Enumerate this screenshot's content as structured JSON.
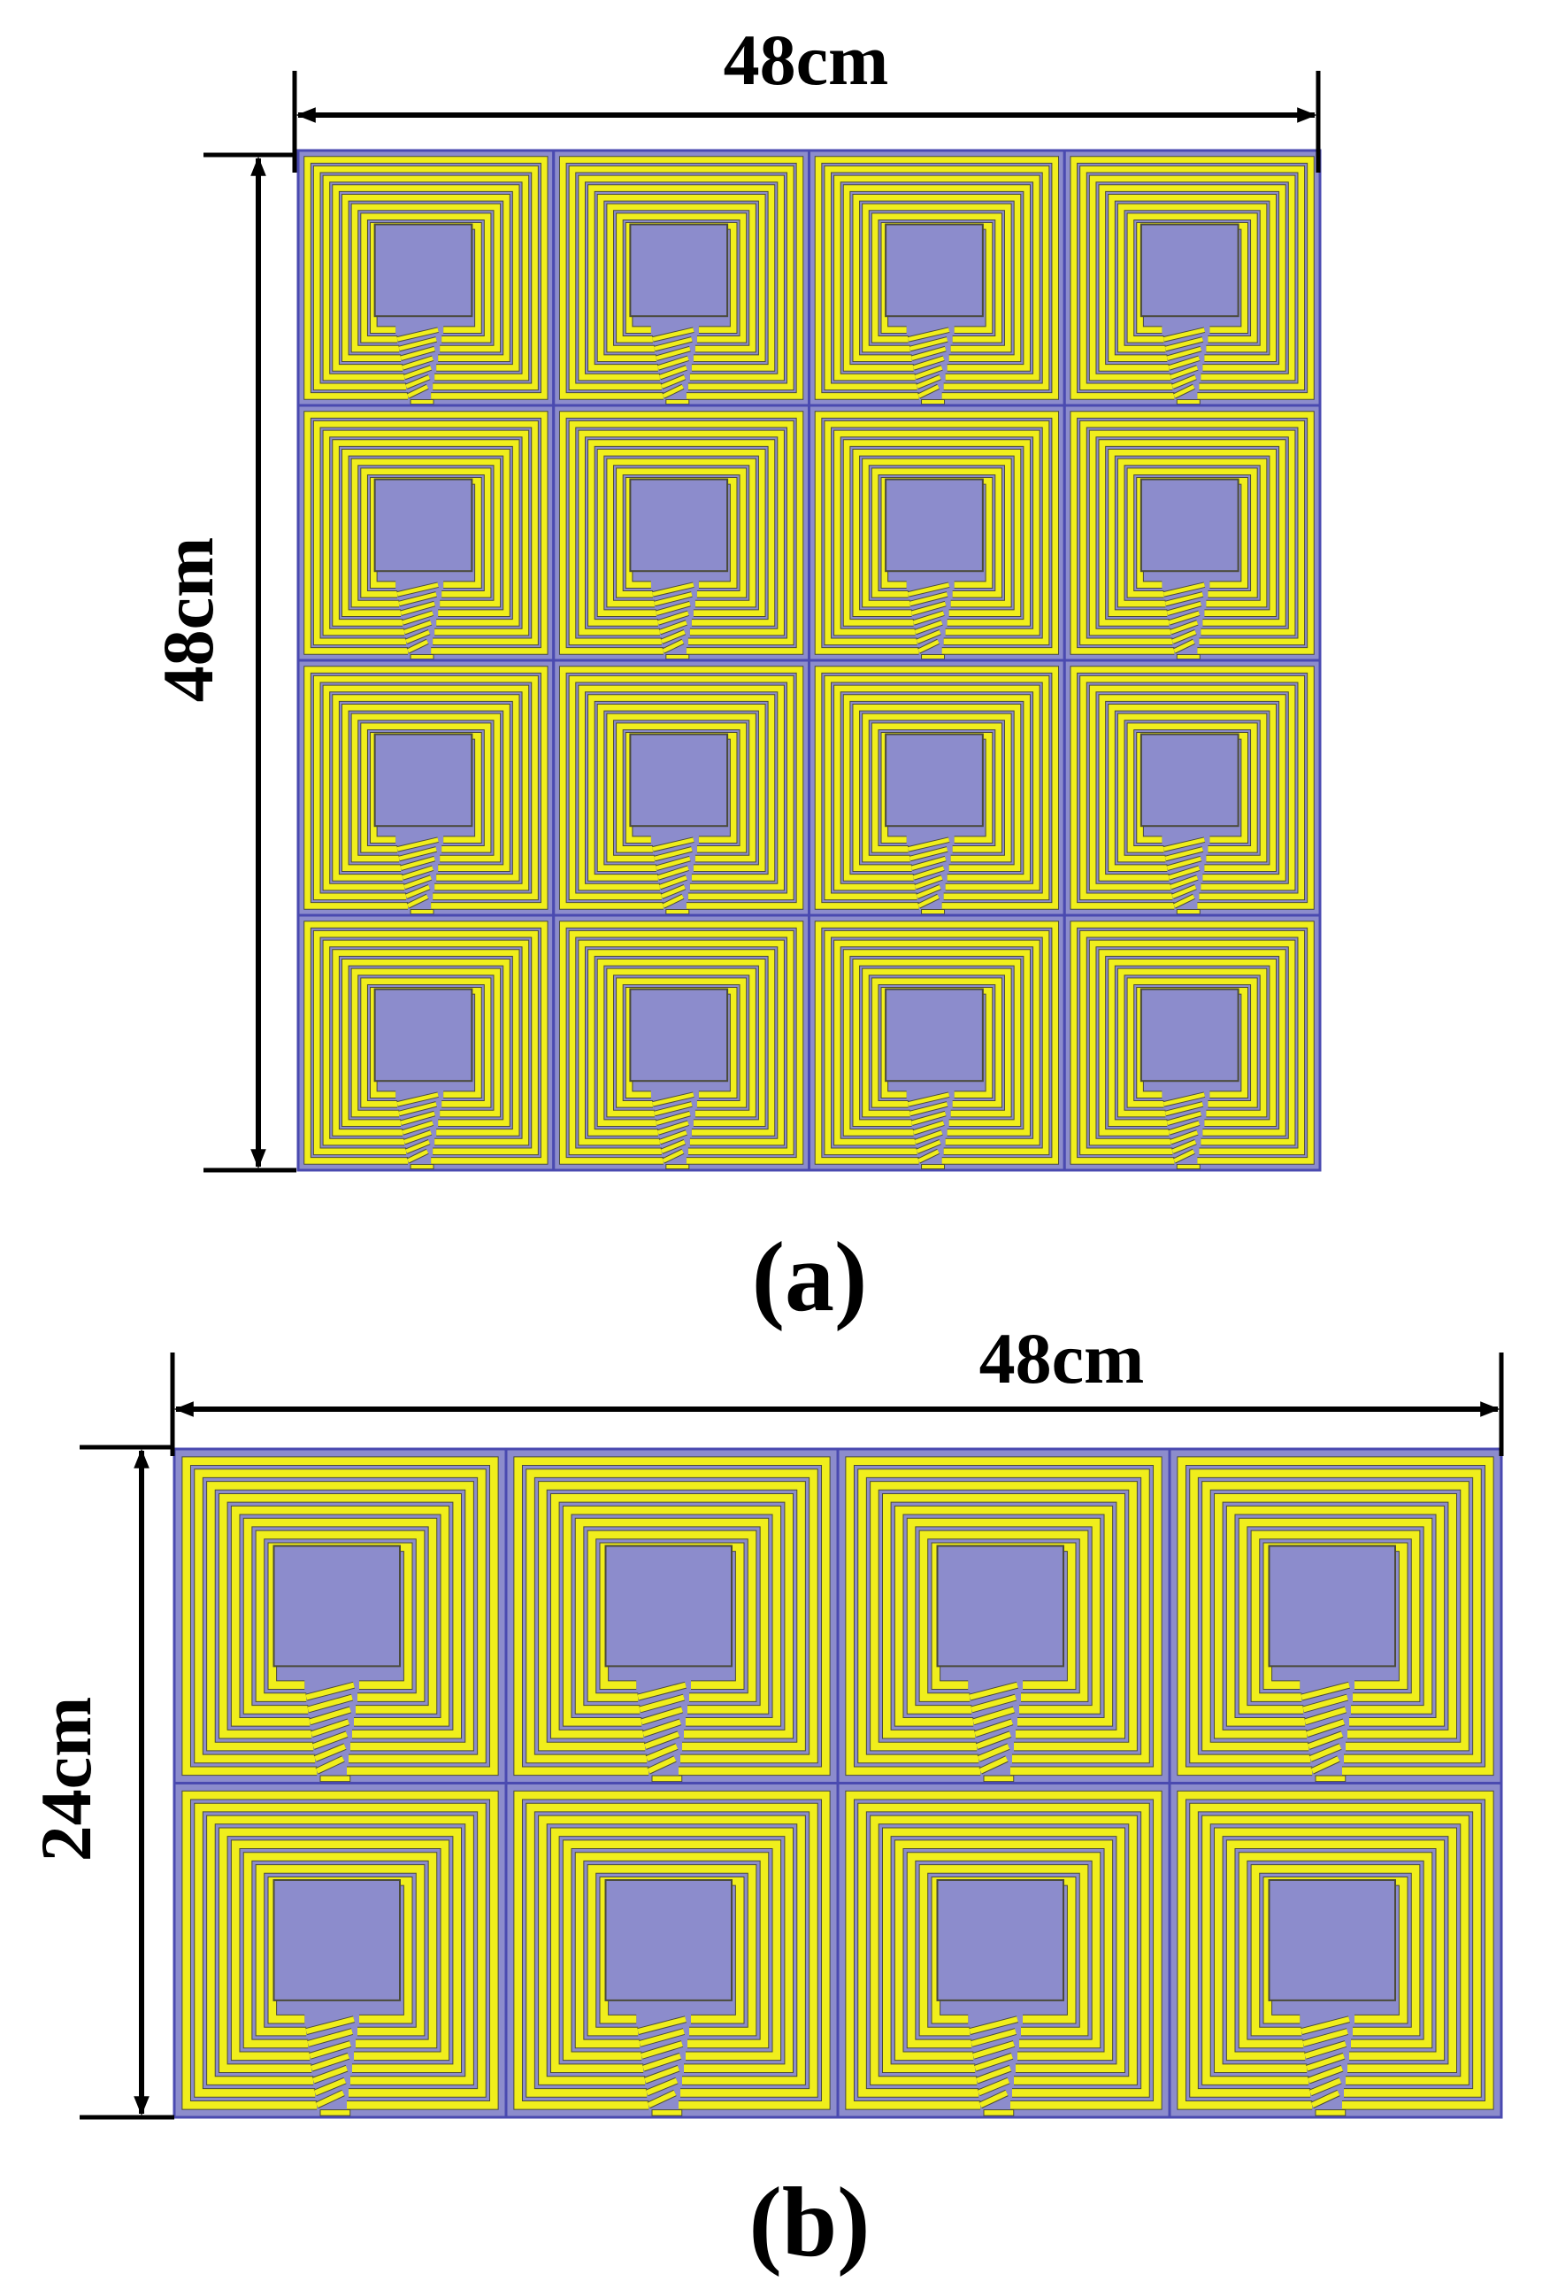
{
  "colors": {
    "substrate": "#8c8ccc",
    "coil": "#f0ee1c",
    "coil_edge": "#4a4a3a",
    "cell_border": "#4a4ab0",
    "dimension_line": "#000000"
  },
  "panel_a": {
    "caption": "(a)",
    "width_label": "48cm",
    "height_label": "48cm",
    "rows": 4,
    "cols": 4
  },
  "panel_b": {
    "caption": "(b)",
    "width_label": "48cm",
    "height_label": "24cm",
    "rows": 2,
    "cols": 4
  }
}
